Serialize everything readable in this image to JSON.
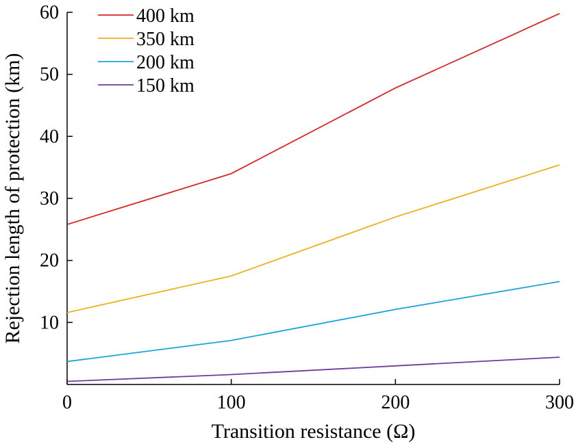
{
  "chart_data": {
    "type": "line",
    "xlabel": "Transition resistance (Ω)",
    "ylabel": "Rejection length of protection (km)",
    "xlim": [
      0,
      300
    ],
    "ylim": [
      0,
      60
    ],
    "xticks": [
      0,
      100,
      200,
      300
    ],
    "yticks": [
      10,
      20,
      30,
      40,
      50,
      60
    ],
    "x_tick_labels": [
      "0",
      "100",
      "200",
      "300"
    ],
    "y_tick_labels": [
      "10",
      "20",
      "30",
      "40",
      "50",
      "60"
    ],
    "x": [
      0,
      100,
      200,
      300
    ],
    "grid": false,
    "legend_position": "top-left",
    "series": [
      {
        "name": "400 km",
        "color": "#d62728",
        "values": [
          25.8,
          34.0,
          47.8,
          59.8
        ]
      },
      {
        "name": "350 km",
        "color": "#edb120",
        "values": [
          11.6,
          17.5,
          27.0,
          35.4
        ]
      },
      {
        "name": "200 km",
        "color": "#1aa3d9",
        "values": [
          3.7,
          7.1,
          12.1,
          16.6
        ]
      },
      {
        "name": "150 km",
        "color": "#6a3d9a",
        "values": [
          0.5,
          1.6,
          3.0,
          4.4
        ]
      }
    ]
  }
}
